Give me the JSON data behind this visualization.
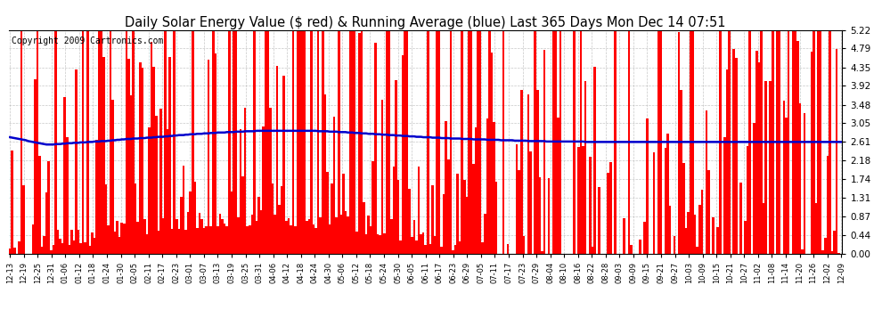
{
  "title": "Daily Solar Energy Value ($ red) & Running Average (blue) Last 365 Days Mon Dec 14 07:51",
  "copyright": "Copyright 2009 Cartronics.com",
  "yticks": [
    0.0,
    0.44,
    0.87,
    1.31,
    1.74,
    2.18,
    2.61,
    3.05,
    3.48,
    3.92,
    4.35,
    4.79,
    5.22
  ],
  "ymax": 5.22,
  "ymin": 0.0,
  "bar_color": "#ff0000",
  "line_color": "#0000cc",
  "bg_color": "#ffffff",
  "grid_color": "#b0b0b0",
  "title_fontsize": 10.5,
  "copyright_fontsize": 7,
  "x_labels": [
    "12-13",
    "12-19",
    "12-25",
    "12-31",
    "01-06",
    "01-12",
    "01-18",
    "01-24",
    "01-30",
    "02-05",
    "02-11",
    "02-17",
    "02-23",
    "03-01",
    "03-07",
    "03-13",
    "03-19",
    "03-25",
    "03-31",
    "04-06",
    "04-12",
    "04-18",
    "04-24",
    "04-30",
    "05-06",
    "05-12",
    "05-18",
    "05-24",
    "05-30",
    "06-05",
    "06-11",
    "06-17",
    "06-23",
    "06-29",
    "07-05",
    "07-11",
    "07-17",
    "07-23",
    "07-29",
    "08-04",
    "08-10",
    "08-16",
    "08-22",
    "08-28",
    "09-03",
    "09-09",
    "09-15",
    "09-21",
    "09-27",
    "10-03",
    "10-09",
    "10-15",
    "10-21",
    "10-27",
    "11-02",
    "11-08",
    "11-14",
    "11-20",
    "11-26",
    "12-02",
    "12-09"
  ],
  "avg_line": [
    2.72,
    2.71,
    2.7,
    2.69,
    2.68,
    2.67,
    2.66,
    2.65,
    2.63,
    2.62,
    2.61,
    2.6,
    2.59,
    2.58,
    2.57,
    2.56,
    2.55,
    2.55,
    2.55,
    2.55,
    2.56,
    2.56,
    2.56,
    2.57,
    2.57,
    2.58,
    2.58,
    2.58,
    2.59,
    2.59,
    2.59,
    2.6,
    2.6,
    2.6,
    2.61,
    2.61,
    2.61,
    2.62,
    2.62,
    2.62,
    2.63,
    2.63,
    2.63,
    2.64,
    2.64,
    2.65,
    2.65,
    2.66,
    2.66,
    2.67,
    2.67,
    2.68,
    2.68,
    2.68,
    2.69,
    2.69,
    2.69,
    2.7,
    2.7,
    2.7,
    2.71,
    2.71,
    2.71,
    2.72,
    2.72,
    2.73,
    2.73,
    2.73,
    2.74,
    2.74,
    2.75,
    2.75,
    2.76,
    2.76,
    2.77,
    2.77,
    2.77,
    2.78,
    2.78,
    2.79,
    2.79,
    2.79,
    2.8,
    2.8,
    2.8,
    2.81,
    2.81,
    2.81,
    2.82,
    2.82,
    2.82,
    2.83,
    2.83,
    2.83,
    2.83,
    2.84,
    2.84,
    2.84,
    2.84,
    2.85,
    2.85,
    2.85,
    2.85,
    2.86,
    2.86,
    2.86,
    2.86,
    2.86,
    2.87,
    2.87,
    2.87,
    2.87,
    2.87,
    2.87,
    2.87,
    2.87,
    2.87,
    2.87,
    2.87,
    2.87,
    2.87,
    2.87,
    2.87,
    2.87,
    2.87,
    2.87,
    2.87,
    2.87,
    2.87,
    2.87,
    2.87,
    2.87,
    2.87,
    2.87,
    2.87,
    2.86,
    2.86,
    2.86,
    2.86,
    2.86,
    2.85,
    2.85,
    2.85,
    2.85,
    2.84,
    2.84,
    2.84,
    2.84,
    2.83,
    2.83,
    2.83,
    2.82,
    2.82,
    2.82,
    2.81,
    2.81,
    2.81,
    2.8,
    2.8,
    2.8,
    2.79,
    2.79,
    2.79,
    2.78,
    2.78,
    2.78,
    2.77,
    2.77,
    2.77,
    2.76,
    2.76,
    2.76,
    2.75,
    2.75,
    2.75,
    2.74,
    2.74,
    2.74,
    2.73,
    2.73,
    2.73,
    2.72,
    2.72,
    2.72,
    2.72,
    2.71,
    2.71,
    2.71,
    2.71,
    2.7,
    2.7,
    2.7,
    2.7,
    2.69,
    2.69,
    2.69,
    2.69,
    2.69,
    2.68,
    2.68,
    2.68,
    2.68,
    2.68,
    2.67,
    2.67,
    2.67,
    2.67,
    2.67,
    2.67,
    2.66,
    2.66,
    2.66,
    2.66,
    2.66,
    2.66,
    2.65,
    2.65,
    2.65,
    2.65,
    2.65,
    2.65,
    2.64,
    2.64,
    2.64,
    2.64,
    2.64,
    2.64,
    2.63,
    2.63,
    2.63,
    2.63,
    2.63,
    2.63,
    2.63,
    2.63,
    2.62,
    2.62,
    2.62,
    2.62,
    2.62,
    2.62,
    2.62,
    2.62,
    2.62,
    2.62,
    2.62,
    2.62,
    2.62,
    2.62,
    2.62,
    2.62,
    2.62,
    2.61,
    2.61,
    2.61,
    2.61,
    2.61,
    2.61,
    2.61,
    2.61,
    2.61,
    2.61,
    2.61,
    2.61,
    2.61,
    2.61,
    2.61,
    2.61,
    2.61,
    2.61,
    2.61,
    2.61,
    2.61,
    2.61,
    2.61,
    2.61,
    2.61,
    2.61,
    2.61,
    2.61,
    2.61,
    2.61,
    2.61,
    2.61,
    2.61,
    2.61,
    2.61,
    2.61,
    2.61,
    2.61,
    2.61,
    2.61,
    2.61,
    2.61,
    2.61,
    2.61,
    2.61,
    2.61,
    2.61,
    2.61,
    2.61,
    2.61,
    2.61,
    2.61,
    2.61,
    2.61,
    2.61,
    2.61,
    2.61,
    2.61,
    2.61,
    2.61,
    2.61,
    2.61,
    2.61,
    2.61,
    2.61,
    2.61,
    2.61,
    2.61,
    2.61,
    2.61,
    2.61,
    2.61,
    2.61,
    2.61,
    2.61,
    2.61,
    2.61,
    2.61,
    2.61,
    2.61,
    2.61,
    2.61,
    2.61,
    2.61,
    2.61,
    2.61,
    2.61,
    2.61,
    2.61,
    2.61,
    2.61,
    2.61,
    2.61,
    2.61,
    2.61,
    2.61,
    2.61,
    2.61,
    2.61,
    2.61,
    2.61,
    2.61,
    2.61,
    2.61,
    2.61,
    2.61,
    2.61,
    2.61,
    2.61,
    2.61,
    2.61,
    2.61,
    2.61
  ]
}
